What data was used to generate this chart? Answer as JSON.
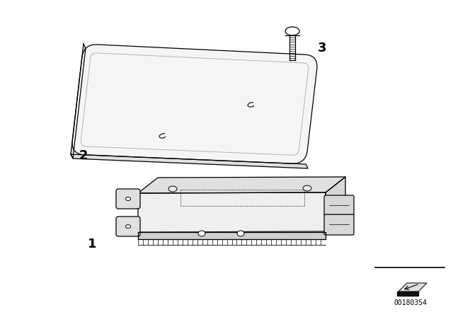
{
  "bg_color": "#ffffff",
  "line_color": "#000000",
  "label_color": "#000000",
  "part_number": "00180354",
  "label_fontsize": 13,
  "plate_color": "#f5f5f5",
  "ecu_color": "#efefef",
  "ecu_top_color": "#e0e0e0",
  "ecu_side_color": "#d8d8d8"
}
